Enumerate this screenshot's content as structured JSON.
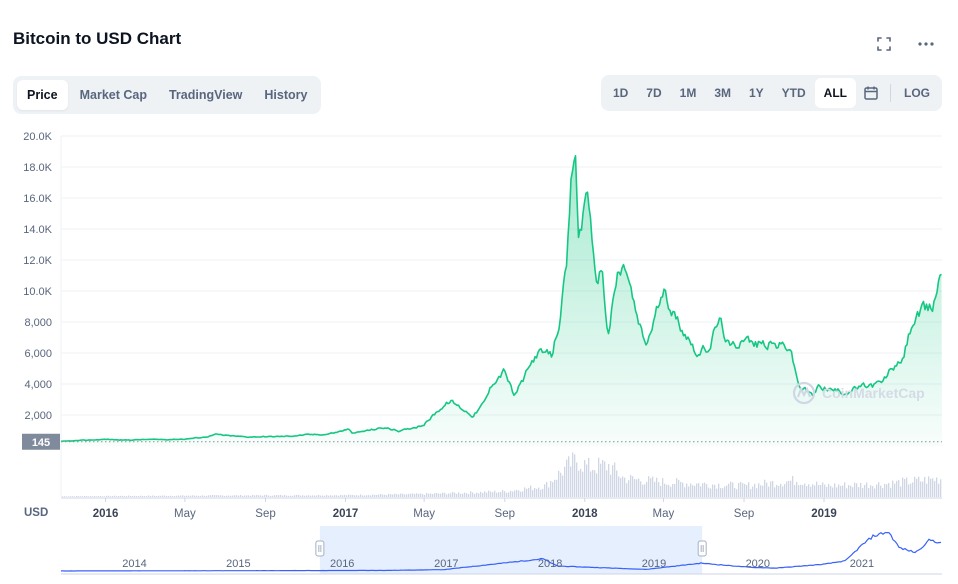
{
  "page_title": "Bitcoin to USD Chart",
  "tabs": [
    {
      "label": "Price",
      "active": true
    },
    {
      "label": "Market Cap",
      "active": false
    },
    {
      "label": "TradingView",
      "active": false
    },
    {
      "label": "History",
      "active": false
    }
  ],
  "ranges": [
    {
      "label": "1D",
      "active": false
    },
    {
      "label": "7D",
      "active": false
    },
    {
      "label": "1M",
      "active": false
    },
    {
      "label": "3M",
      "active": false
    },
    {
      "label": "1Y",
      "active": false
    },
    {
      "label": "YTD",
      "active": false
    },
    {
      "label": "ALL",
      "active": true
    }
  ],
  "log_label": "LOG",
  "watermark": "CoinMarketCap",
  "colors": {
    "line": "#16c784",
    "volume": "#cfd6e4",
    "navigator_line": "#3861fb",
    "navigator_fill": "#e6effe"
  },
  "icons": [
    "fullscreen-icon",
    "more-icon",
    "calendar-icon",
    "coinmarketcap-logo-icon"
  ],
  "chart_data": {
    "type": "area",
    "title": "Bitcoin to USD Chart",
    "xlabel": "",
    "ylabel": "USD",
    "ylim": [
      0,
      20000
    ],
    "xlim": [
      "2015-10-25",
      "2019-06-30"
    ],
    "yticks": [
      2000,
      4000,
      6000,
      8000,
      10000,
      12000,
      14000,
      16000,
      18000,
      20000
    ],
    "ytick_labels": [
      "2,000",
      "4,000",
      "6,000",
      "8,000",
      "10.0K",
      "12.0K",
      "14.0K",
      "16.0K",
      "18.0K",
      "20.0K"
    ],
    "xticks": [
      {
        "date": "2016-01-01",
        "label": "2016",
        "bold": true
      },
      {
        "date": "2016-05-01",
        "label": "May",
        "bold": false
      },
      {
        "date": "2016-09-01",
        "label": "Sep",
        "bold": false
      },
      {
        "date": "2017-01-01",
        "label": "2017",
        "bold": true
      },
      {
        "date": "2017-05-01",
        "label": "May",
        "bold": false
      },
      {
        "date": "2017-09-01",
        "label": "Sep",
        "bold": false
      },
      {
        "date": "2018-01-01",
        "label": "2018",
        "bold": true
      },
      {
        "date": "2018-05-01",
        "label": "May",
        "bold": false
      },
      {
        "date": "2018-09-01",
        "label": "Sep",
        "bold": false
      },
      {
        "date": "2019-01-01",
        "label": "2019",
        "bold": true
      }
    ],
    "baseline_label": "145",
    "baseline_value": 145,
    "grid": true,
    "series": [
      {
        "values": [
          [
            "2015-10-25",
            290
          ],
          [
            "2015-12-01",
            370
          ],
          [
            "2016-01-01",
            430
          ],
          [
            "2016-02-01",
            380
          ],
          [
            "2016-03-01",
            420
          ],
          [
            "2016-04-01",
            420
          ],
          [
            "2016-05-01",
            450
          ],
          [
            "2016-06-01",
            580
          ],
          [
            "2016-06-18",
            750
          ],
          [
            "2016-07-01",
            680
          ],
          [
            "2016-08-01",
            590
          ],
          [
            "2016-09-01",
            600
          ],
          [
            "2016-10-01",
            620
          ],
          [
            "2016-11-01",
            720
          ],
          [
            "2016-12-01",
            750
          ],
          [
            "2016-12-20",
            900
          ],
          [
            "2017-01-05",
            1100
          ],
          [
            "2017-01-12",
            800
          ],
          [
            "2017-02-01",
            980
          ],
          [
            "2017-03-01",
            1190
          ],
          [
            "2017-03-25",
            950
          ],
          [
            "2017-04-15",
            1200
          ],
          [
            "2017-05-01",
            1400
          ],
          [
            "2017-05-25",
            2400
          ],
          [
            "2017-06-10",
            2900
          ],
          [
            "2017-07-15",
            1950
          ],
          [
            "2017-08-01",
            2800
          ],
          [
            "2017-08-15",
            4200
          ],
          [
            "2017-09-01",
            4900
          ],
          [
            "2017-09-15",
            3200
          ],
          [
            "2017-10-01",
            4400
          ],
          [
            "2017-10-20",
            6000
          ],
          [
            "2017-11-12",
            5800
          ],
          [
            "2017-11-25",
            8500
          ],
          [
            "2017-12-05",
            11500
          ],
          [
            "2017-12-10",
            16000
          ],
          [
            "2017-12-17",
            19400
          ],
          [
            "2017-12-22",
            13500
          ],
          [
            "2017-12-28",
            14500
          ],
          [
            "2018-01-06",
            17200
          ],
          [
            "2018-01-12",
            13000
          ],
          [
            "2018-01-17",
            10500
          ],
          [
            "2018-01-28",
            11500
          ],
          [
            "2018-02-05",
            7000
          ],
          [
            "2018-02-20",
            11000
          ],
          [
            "2018-03-05",
            11500
          ],
          [
            "2018-03-20",
            8500
          ],
          [
            "2018-04-01",
            6800
          ],
          [
            "2018-04-06",
            6600
          ],
          [
            "2018-04-25",
            9300
          ],
          [
            "2018-05-05",
            9800
          ],
          [
            "2018-05-20",
            8200
          ],
          [
            "2018-06-01",
            7500
          ],
          [
            "2018-06-24",
            5900
          ],
          [
            "2018-07-10",
            6400
          ],
          [
            "2018-07-25",
            8200
          ],
          [
            "2018-08-10",
            6300
          ],
          [
            "2018-08-20",
            6500
          ],
          [
            "2018-09-01",
            7200
          ],
          [
            "2018-09-15",
            6500
          ],
          [
            "2018-10-01",
            6600
          ],
          [
            "2018-10-20",
            6500
          ],
          [
            "2018-11-10",
            6400
          ],
          [
            "2018-11-20",
            4500
          ],
          [
            "2018-11-25",
            3800
          ],
          [
            "2018-12-15",
            3250
          ],
          [
            "2018-12-25",
            3900
          ],
          [
            "2019-01-15",
            3600
          ],
          [
            "2019-02-01",
            3450
          ],
          [
            "2019-02-25",
            3800
          ],
          [
            "2019-03-15",
            3900
          ],
          [
            "2019-04-01",
            4100
          ],
          [
            "2019-04-15",
            5100
          ],
          [
            "2019-04-30",
            5300
          ],
          [
            "2019-05-15",
            7900
          ],
          [
            "2019-05-30",
            8600
          ],
          [
            "2019-06-15",
            8900
          ],
          [
            "2019-06-30",
            11500
          ]
        ]
      }
    ],
    "volume": [
      [
        "2015-10-25",
        0.02
      ],
      [
        "2016-06-15",
        0.04
      ],
      [
        "2017-01-05",
        0.05
      ],
      [
        "2017-05-01",
        0.08
      ],
      [
        "2017-09-01",
        0.15
      ],
      [
        "2017-11-01",
        0.3
      ],
      [
        "2017-12-10",
        0.9
      ],
      [
        "2017-12-20",
        1.0
      ],
      [
        "2018-01-05",
        0.8
      ],
      [
        "2018-02-05",
        0.85
      ],
      [
        "2018-03-01",
        0.5
      ],
      [
        "2018-05-01",
        0.4
      ],
      [
        "2018-07-01",
        0.35
      ],
      [
        "2018-09-01",
        0.3
      ],
      [
        "2018-11-20",
        0.45
      ],
      [
        "2019-01-01",
        0.3
      ],
      [
        "2019-04-01",
        0.35
      ],
      [
        "2019-06-30",
        0.5
      ]
    ],
    "navigator": {
      "labels": [
        "2014",
        "2015",
        "2016",
        "2017",
        "2018",
        "2019",
        "2020",
        "2021"
      ],
      "selected_range": [
        "2015-10-25",
        "2019-06-30"
      ]
    }
  }
}
